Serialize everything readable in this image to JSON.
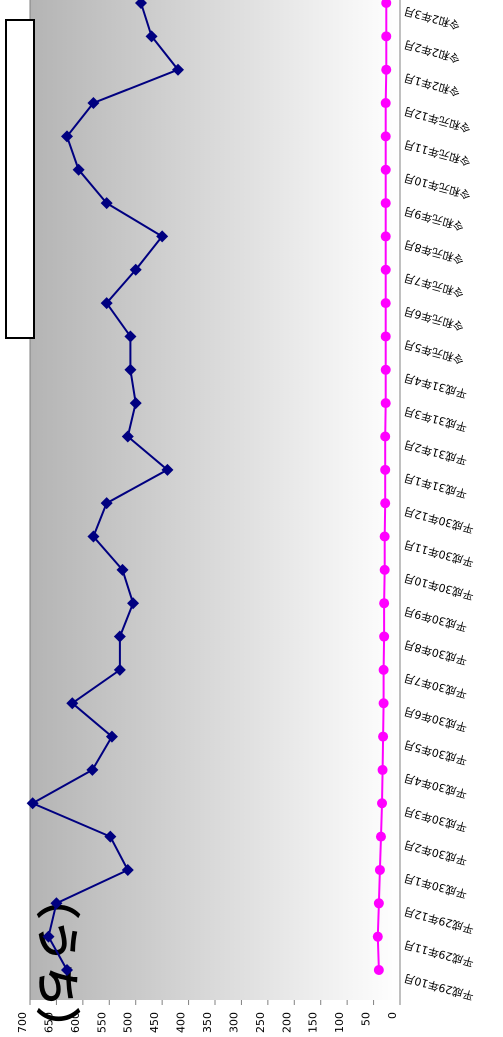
{
  "chart_data": {
    "type": "line",
    "orientation": "rotated-90",
    "title_fragment": "（うち）",
    "categories": [
      "平成29年10月",
      "平成29年11月",
      "平成29年12月",
      "平成30年1月",
      "平成30年2月",
      "平成30年3月",
      "平成30年4月",
      "平成30年5月",
      "平成30年6月",
      "平成30年7月",
      "平成30年8月",
      "平成30年9月",
      "平成30年10月",
      "平成30年11月",
      "平成30年12月",
      "平成31年1月",
      "平成31年2月",
      "平成31年3月",
      "平成31年4月",
      "令和元年5月",
      "令和元年6月",
      "令和元年7月",
      "令和元年8月",
      "令和元年9月",
      "令和元年10月",
      "令和元年11月",
      "令和元年12月",
      "令和2年1月",
      "令和2年2月",
      "令和2年3月"
    ],
    "series": [
      {
        "color": "#000080",
        "marker": "diamond",
        "values": [
          630,
          665,
          650,
          515,
          548,
          695,
          582,
          545,
          620,
          530,
          530,
          505,
          525,
          580,
          555,
          440,
          515,
          500,
          510,
          510,
          555,
          500,
          450,
          555,
          608,
          630,
          580,
          420,
          470,
          490
        ]
      },
      {
        "color": "#ff00ff",
        "marker": "circle",
        "values": [
          40,
          42,
          40,
          38,
          36,
          34,
          33,
          32,
          31,
          31,
          30,
          30,
          29,
          29,
          28,
          28,
          28,
          27,
          27,
          27,
          27,
          27,
          27,
          27,
          27,
          27,
          27,
          26,
          26,
          26
        ]
      }
    ],
    "y_ticks": [
      "0",
      "50",
      "100",
      "150",
      "200",
      "250",
      "300",
      "350",
      "400",
      "450",
      "500",
      "550",
      "600",
      "650",
      "700"
    ],
    "ylim": [
      0,
      700
    ],
    "grid": false
  }
}
